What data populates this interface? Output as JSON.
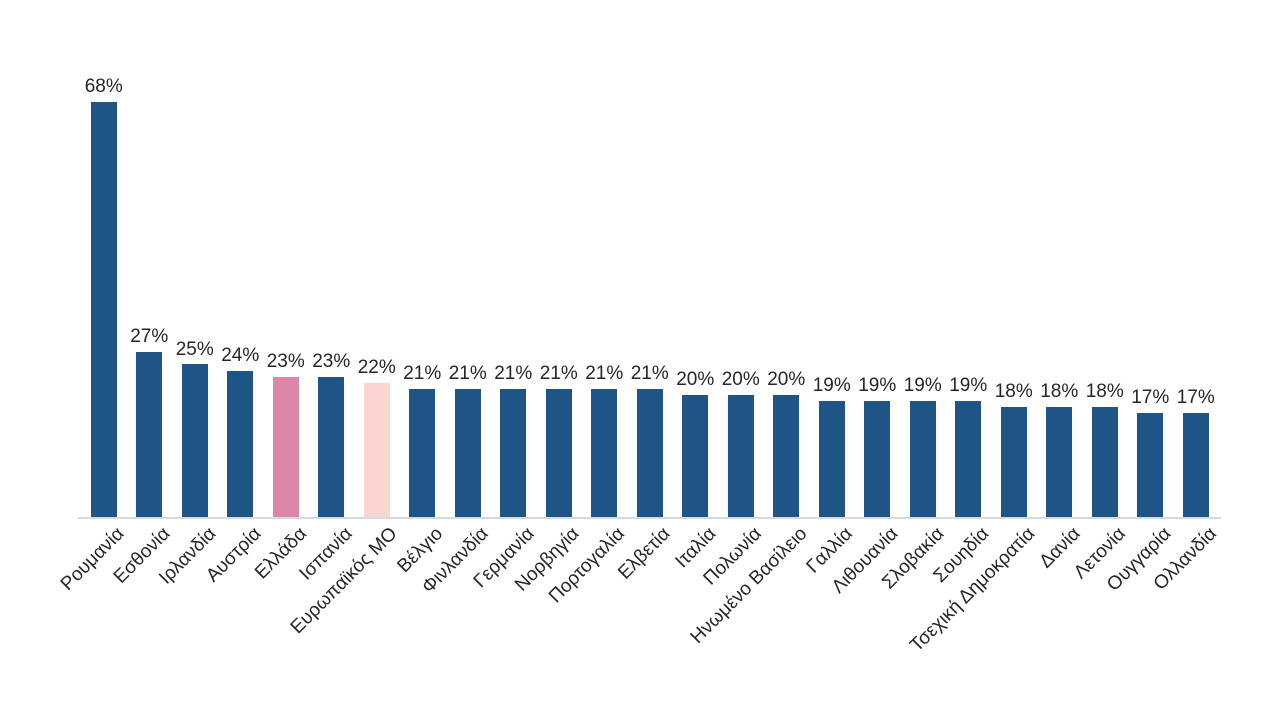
{
  "chart_data": {
    "type": "bar",
    "title": "",
    "xlabel": "",
    "ylabel": "",
    "unit": "%",
    "ylim": [
      0,
      70
    ],
    "grid": false,
    "legend_position": "none",
    "value_label_suffix": "%",
    "categories": [
      "Ρουμανία",
      "Εσθονία",
      "Ιρλανδία",
      "Αυστρία",
      "Ελλάδα",
      "Ισπανία",
      "Ευρωπαϊκός ΜΟ",
      "Βέλγιο",
      "Φινλανδία",
      "Γερμανία",
      "Νορβηγία",
      "Πορτογαλία",
      "Ελβετία",
      "Ιταλία",
      "Πολωνία",
      "Ηνωμένο Βασίλειο",
      "Γαλλία",
      "Λιθουανία",
      "Σλοβακία",
      "Σουηδία",
      "Τσεχική Δημοκρατία",
      "Δανία",
      "Λετονία",
      "Ουγγαρία",
      "Ολλανδία"
    ],
    "values": [
      68,
      27,
      25,
      24,
      23,
      23,
      22,
      21,
      21,
      21,
      21,
      21,
      21,
      20,
      20,
      20,
      19,
      19,
      19,
      19,
      18,
      18,
      18,
      17,
      17
    ],
    "value_labels": [
      "68%",
      "27%",
      "25%",
      "24%",
      "23%",
      "23%",
      "22%",
      "21%",
      "21%",
      "21%",
      "21%",
      "21%",
      "21%",
      "20%",
      "20%",
      "20%",
      "19%",
      "19%",
      "19%",
      "19%",
      "18%",
      "18%",
      "18%",
      "17%",
      "17%"
    ],
    "default_bar_color": "#1F5486",
    "highlighted_bars": [
      {
        "category": "Ελλάδα",
        "color": "#DC86A9"
      },
      {
        "category": "Ευρωπαϊκός ΜΟ",
        "color": "#FBD5CF"
      }
    ],
    "bar_colors": [
      "#1F5486",
      "#1F5486",
      "#1F5486",
      "#1F5486",
      "#DC86A9",
      "#1F5486",
      "#FBD5CF",
      "#1F5486",
      "#1F5486",
      "#1F5486",
      "#1F5486",
      "#1F5486",
      "#1F5486",
      "#1F5486",
      "#1F5486",
      "#1F5486",
      "#1F5486",
      "#1F5486",
      "#1F5486",
      "#1F5486",
      "#1F5486",
      "#1F5486",
      "#1F5486",
      "#1F5486",
      "#1F5486"
    ],
    "axis_line_color": "#D6D9DE",
    "label_color": "#262626"
  }
}
